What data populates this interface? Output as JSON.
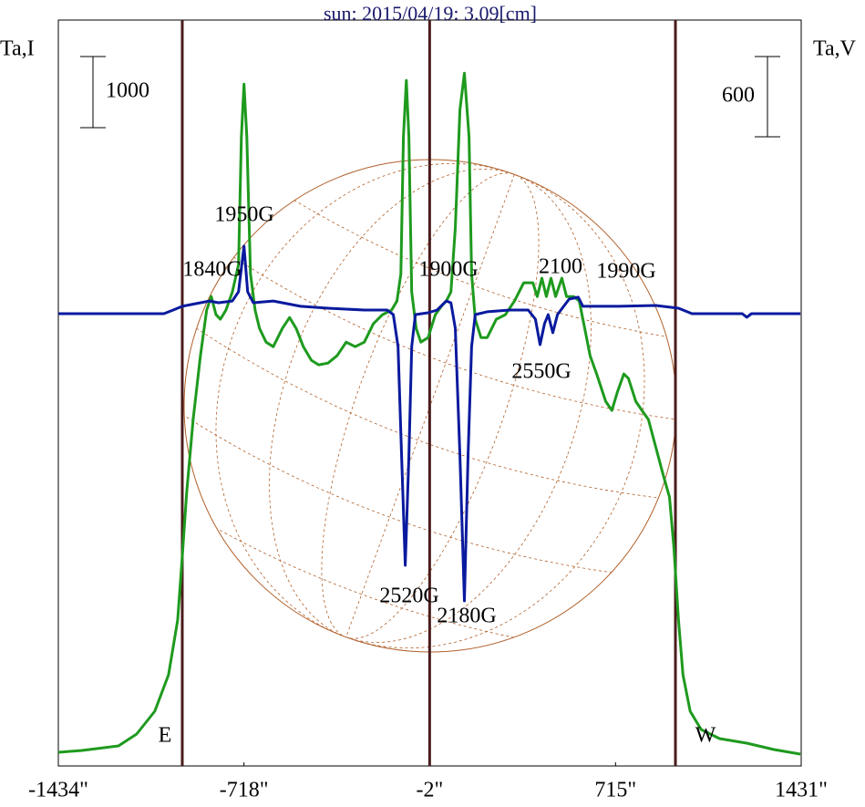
{
  "chart_data": {
    "type": "line",
    "title": "sun: 2015/04/19: 3.09[cm]",
    "y_label": "Ta,I",
    "y2_label": "Ta,V",
    "xlim": [
      -1434,
      1431
    ],
    "xticks": [
      {
        "value": -1434,
        "label": "-1434\""
      },
      {
        "value": -718,
        "label": "-718\""
      },
      {
        "value": -2,
        "label": "-2\""
      },
      {
        "value": 715,
        "label": "715\""
      },
      {
        "value": 1431,
        "label": "1431\""
      }
    ],
    "ylim": [
      0,
      10490
    ],
    "y2lim": [
      -3383,
      2196
    ],
    "grid": false,
    "scale_bar_y": 1000,
    "scale_bar_y2": 600,
    "vlines": [
      -956,
      -2,
      946
    ],
    "vline_color": "#4a1c1c",
    "annotations": [
      "1950G",
      "1840G",
      "1900G",
      "2100",
      "1990G",
      "2550G",
      "2520G",
      "2180G",
      "E",
      "W"
    ],
    "series": [
      {
        "name": "Ta,I",
        "color": "#1e9a1e",
        "x": [
          -1434,
          -1343,
          -1202,
          -1132,
          -1062,
          -1009,
          -974,
          -956,
          -939,
          -914,
          -886,
          -862,
          -844,
          -826,
          -809,
          -788,
          -763,
          -739,
          -728,
          -718,
          -707,
          -693,
          -675,
          -658,
          -633,
          -605,
          -570,
          -542,
          -517,
          -489,
          -458,
          -430,
          -394,
          -359,
          -324,
          -289,
          -254,
          -219,
          -184,
          -149,
          -128,
          -113,
          -103,
          -92,
          -82,
          -71,
          -54,
          -36,
          -8,
          20,
          45,
          62,
          80,
          97,
          115,
          132,
          150,
          160,
          174,
          196,
          220,
          255,
          290,
          325,
          361,
          396,
          413,
          431,
          448,
          466,
          484,
          508,
          526,
          554,
          575,
          596,
          617,
          642,
          677,
          701,
          722,
          747,
          765,
          793,
          817,
          842,
          870,
          898,
          923,
          940,
          958,
          975,
          1003,
          1045,
          1116,
          1221,
          1326,
          1428
        ],
        "values": [
          192,
          218,
          282,
          449,
          769,
          1282,
          2051,
          2949,
          3846,
          4872,
          5769,
          6410,
          6602,
          6346,
          6282,
          6410,
          6666,
          7051,
          8846,
          9589,
          8846,
          6923,
          6410,
          6154,
          5961,
          5897,
          6154,
          6307,
          6154,
          5897,
          5705,
          5641,
          5666,
          5769,
          5961,
          5897,
          5961,
          6218,
          6346,
          6410,
          6538,
          6923,
          8846,
          9641,
          8846,
          6666,
          6154,
          5961,
          6025,
          6346,
          6474,
          6538,
          6666,
          7564,
          9230,
          9743,
          8846,
          6923,
          6282,
          6025,
          6025,
          6282,
          6346,
          6538,
          6795,
          6795,
          6602,
          6859,
          6602,
          6859,
          6602,
          6859,
          6602,
          6602,
          6538,
          6154,
          5769,
          5513,
          5128,
          5000,
          5256,
          5513,
          5449,
          5128,
          5000,
          4872,
          4487,
          4102,
          3782,
          3077,
          2051,
          1282,
          769,
          513,
          385,
          321,
          231,
          167
        ]
      },
      {
        "name": "Ta,V",
        "color": "#0a1a9e",
        "axis": "y2",
        "x": [
          -1434,
          -1027,
          -991,
          -956,
          -904,
          -851,
          -816,
          -763,
          -739,
          -718,
          -704,
          -682,
          -605,
          -500,
          -394,
          -254,
          -166,
          -142,
          -124,
          -110,
          -96,
          -82,
          -71,
          -57,
          -8,
          27,
          62,
          80,
          97,
          115,
          132,
          146,
          160,
          174,
          220,
          308,
          378,
          406,
          424,
          441,
          455,
          473,
          491,
          536,
          571,
          589,
          729,
          870,
          958,
          1010,
          1204,
          1221,
          1239,
          1428
        ],
        "values": [
          0,
          0,
          27,
          55,
          75,
          95,
          82,
          95,
          164,
          505,
          164,
          82,
          95,
          55,
          41,
          27,
          27,
          -7,
          -246,
          -1064,
          -1882,
          -1064,
          -246,
          -7,
          7,
          27,
          95,
          82,
          -109,
          -1064,
          -2148,
          -1064,
          -246,
          -7,
          14,
          27,
          27,
          -41,
          -232,
          -75,
          -7,
          -143,
          -7,
          109,
          123,
          55,
          55,
          61,
          41,
          0,
          0,
          -27,
          0,
          0
        ]
      }
    ]
  }
}
